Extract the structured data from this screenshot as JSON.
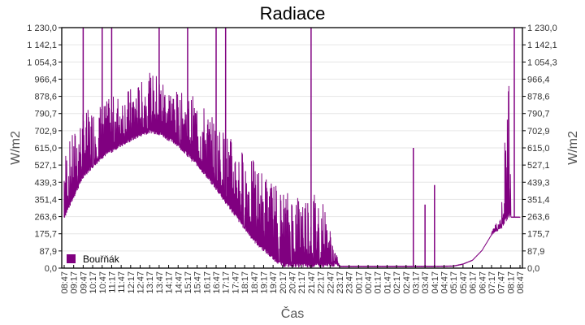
{
  "chart_data": {
    "type": "line",
    "title": "Radiace",
    "xlabel": "Čas",
    "ylabel": "W/m2",
    "ylabel_right": "W/m2",
    "ylim": [
      0,
      1230
    ],
    "grid": true,
    "legend_position": "bottom-left inside plot",
    "y_ticks": [
      "0,0",
      "87,9",
      "175,7",
      "263,6",
      "351,4",
      "439,3",
      "527,1",
      "615,0",
      "702,9",
      "790,7",
      "878,6",
      "966,4",
      "1 054,3",
      "1 142,1",
      "1 230,0"
    ],
    "x_ticks": [
      "08:47",
      "09:17",
      "09:47",
      "10:17",
      "10:47",
      "11:17",
      "11:47",
      "12:17",
      "12:47",
      "13:17",
      "13:47",
      "14:17",
      "14:47",
      "15:17",
      "15:47",
      "16:17",
      "16:47",
      "17:17",
      "17:47",
      "18:17",
      "18:47",
      "19:17",
      "19:47",
      "20:17",
      "20:47",
      "21:17",
      "21:47",
      "22:17",
      "22:47",
      "23:17",
      "23:47",
      "00:17",
      "00:47",
      "01:17",
      "01:47",
      "02:17",
      "02:47",
      "03:17",
      "03:47",
      "04:17",
      "04:47",
      "05:17",
      "05:47",
      "06:17",
      "06:47",
      "07:17",
      "07:47",
      "08:17",
      "08:47"
    ],
    "series": [
      {
        "name": "Bouřňák",
        "color": "#800080",
        "baseline_x": [
          "08:47",
          "09:47",
          "10:47",
          "11:47",
          "12:47",
          "13:17",
          "13:47",
          "14:47",
          "15:47",
          "16:47",
          "17:47",
          "18:47",
          "19:47",
          "20:17",
          "21:17",
          "22:17",
          "23:17",
          "00:17",
          "01:17",
          "02:17",
          "03:17",
          "04:17",
          "05:17",
          "05:47",
          "06:17",
          "06:47",
          "07:17",
          "07:47",
          "08:17",
          "08:47"
        ],
        "baseline_values": [
          250,
          460,
          560,
          620,
          670,
          690,
          680,
          620,
          520,
          400,
          260,
          130,
          40,
          5,
          3,
          3,
          8,
          8,
          8,
          8,
          8,
          8,
          10,
          20,
          40,
          90,
          170,
          200,
          270,
          260
        ],
        "upper_envelope_values": [
          600,
          800,
          850,
          900,
          950,
          1000,
          1000,
          900,
          880,
          750,
          650,
          550,
          450,
          400,
          400,
          400,
          10,
          10,
          10,
          10,
          10,
          10,
          15,
          25,
          50,
          110,
          190,
          280,
          1230,
          280
        ],
        "spikes": [
          {
            "x": "09:47",
            "value": 1230
          },
          {
            "x": "10:47",
            "value": 1230
          },
          {
            "x": "11:17",
            "value": 1230
          },
          {
            "x": "13:47",
            "value": 1230
          },
          {
            "x": "15:17",
            "value": 1230
          },
          {
            "x": "16:47",
            "value": 1230
          },
          {
            "x": "17:17",
            "value": 1230
          },
          {
            "x": "21:47",
            "value": 1230
          },
          {
            "x": "03:10",
            "value": 615
          },
          {
            "x": "03:47",
            "value": 325
          },
          {
            "x": "04:17",
            "value": 425
          },
          {
            "x": "08:30",
            "value": 1230
          }
        ]
      }
    ]
  }
}
